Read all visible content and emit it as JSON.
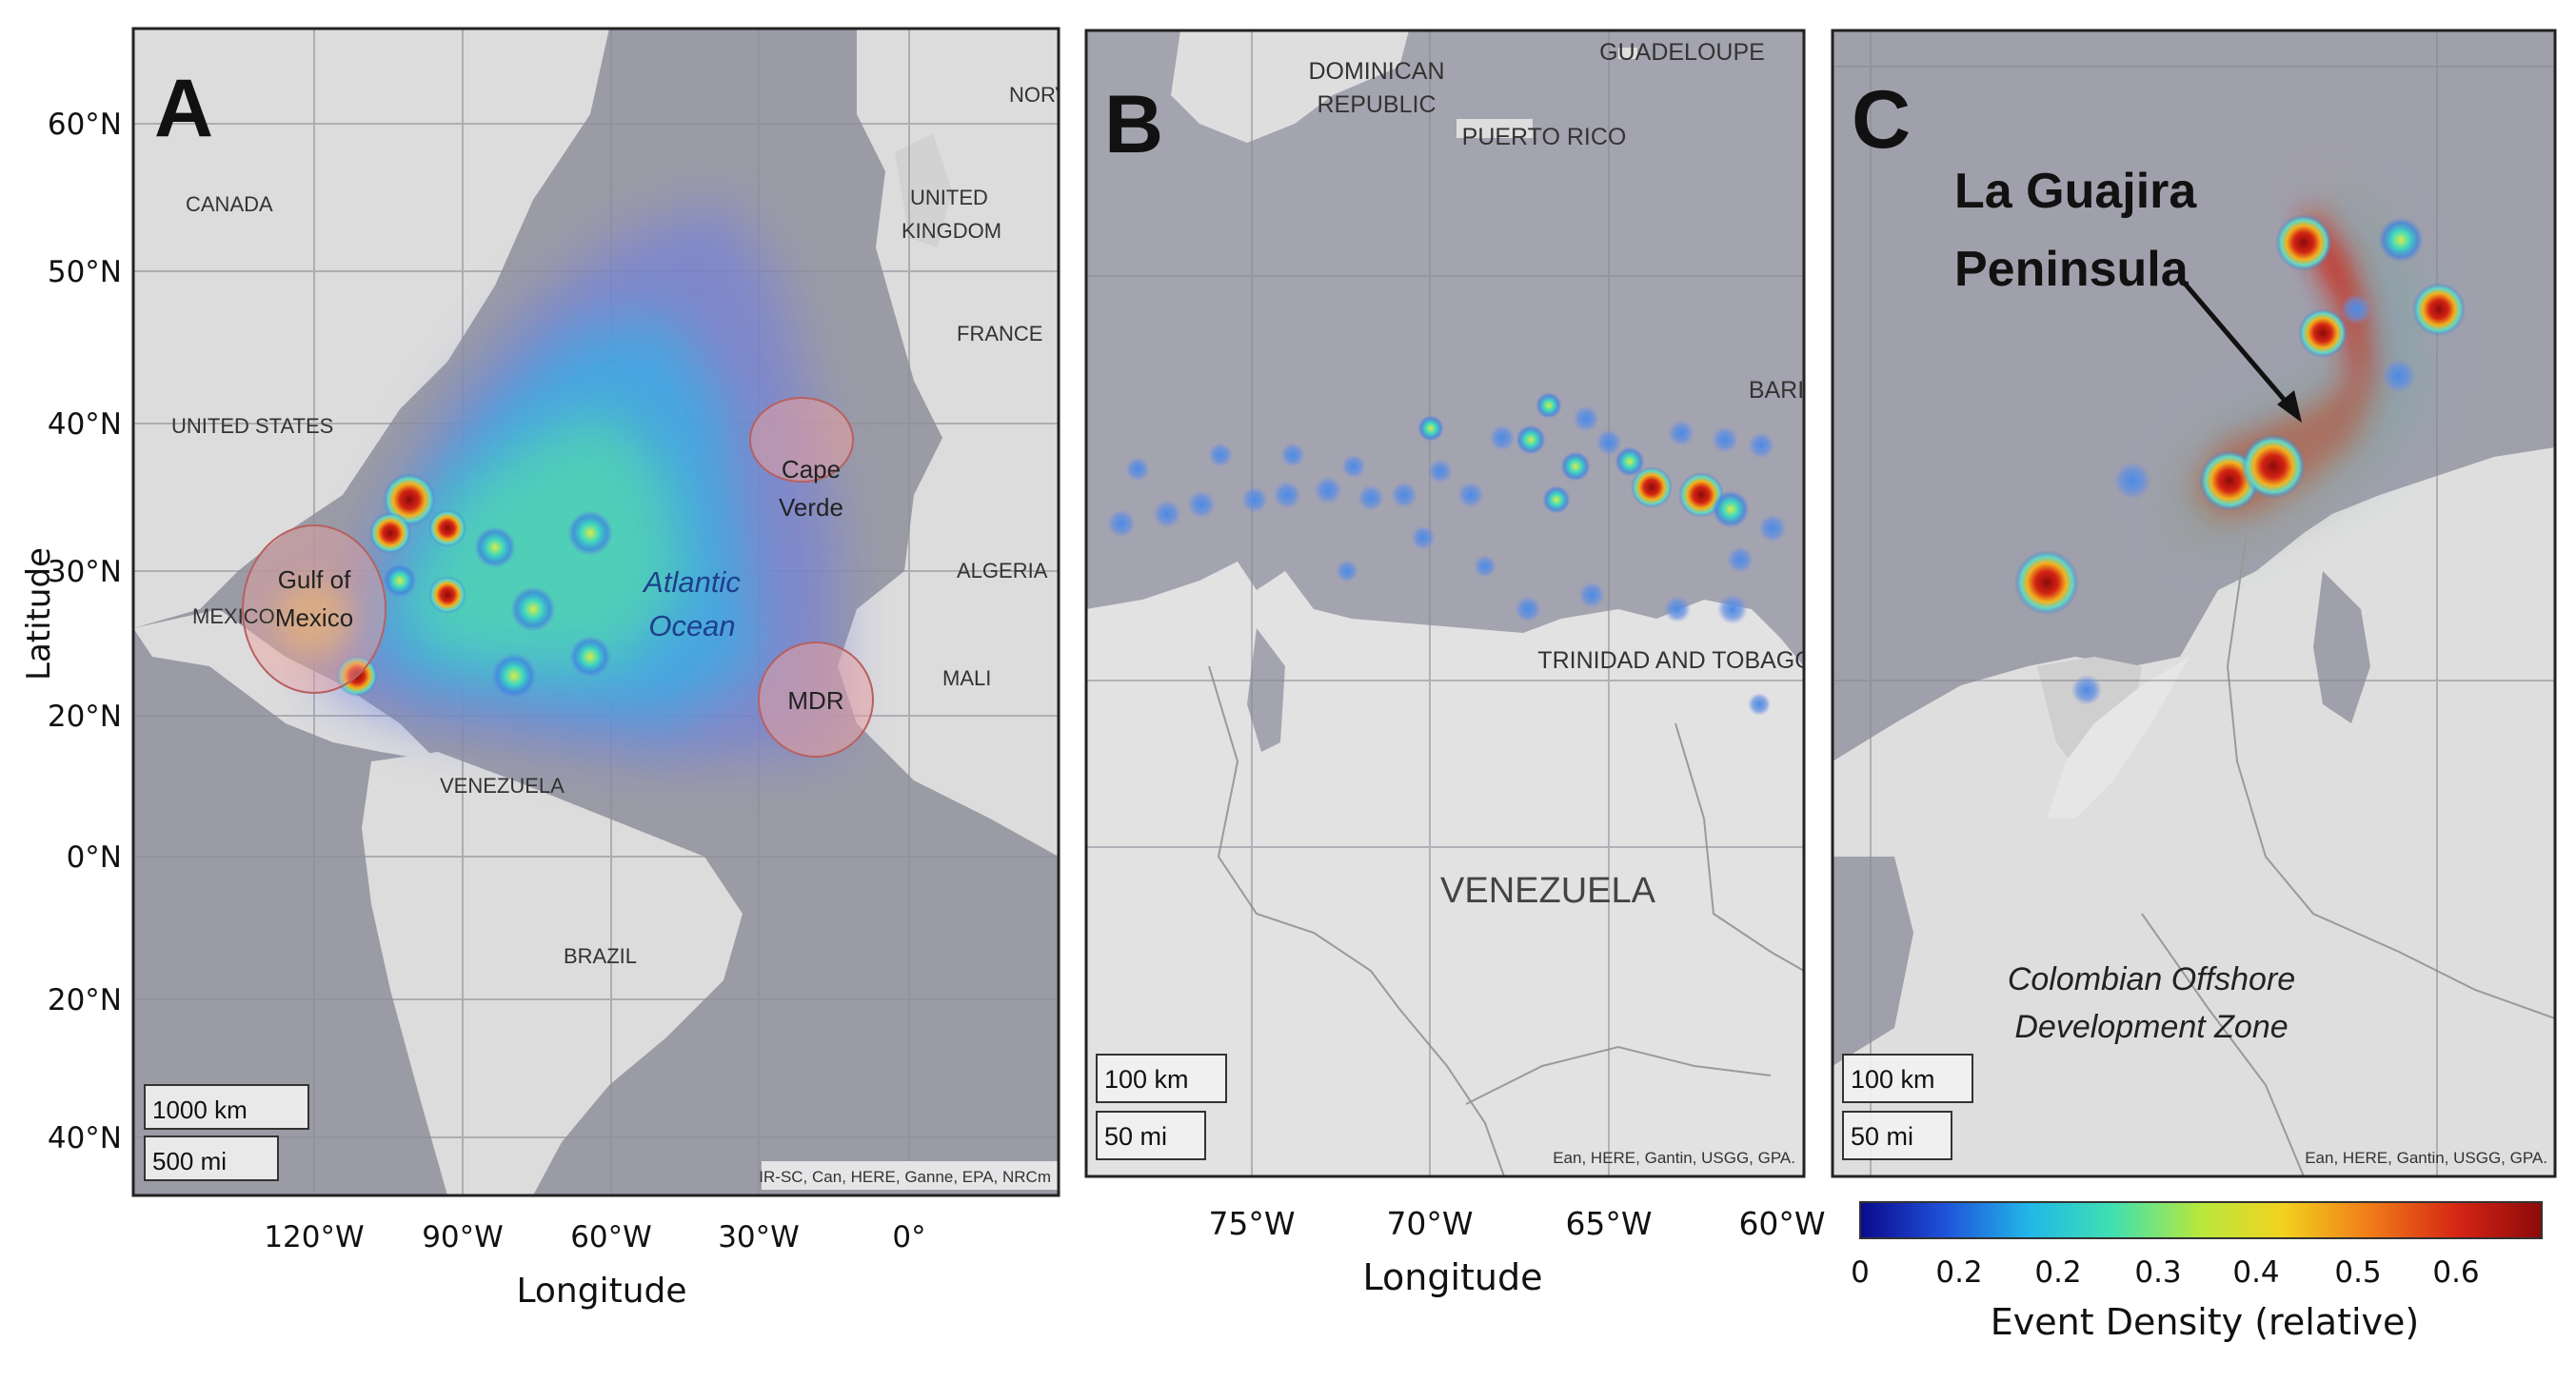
{
  "panels": {
    "a": {
      "letter": "A",
      "place_labels": [
        "NORV",
        "CANADA",
        "UNITED",
        "KINGDOM",
        "FRANCE",
        "UNITED STATES",
        "MEXICO",
        "ALGERIA",
        "MALI",
        "VENEZUELA",
        "BRAZIL"
      ],
      "ocean_label": [
        "Atlantic",
        "Ocean"
      ],
      "regions": [
        {
          "label": [
            "Gulf of",
            "Mexico"
          ]
        },
        {
          "label": [
            "Cape",
            "Verde"
          ]
        },
        {
          "label": [
            "MDR"
          ]
        }
      ],
      "lat_ticks": [
        "60°N",
        "50°N",
        "40°N",
        "30°N",
        "20°N",
        "0°N",
        "20°N",
        "40°N"
      ],
      "lon_ticks": [
        "120°W",
        "90°W",
        "60°W",
        "30°W",
        "0°"
      ],
      "ylabel": "Latitude",
      "xlabel": "Longitude",
      "scale_km": "1000 km",
      "scale_mi": "500 mi",
      "attribution": "IR-SC, Can, HERE, Ganne, EPA, NRCm"
    },
    "b": {
      "letter": "B",
      "place_labels": [
        "DOMINICAN",
        "REPUBLIC",
        "GUADELOUPE",
        "PUERTO RICO",
        "BARI",
        "TRINIDAD AND TOBAGO",
        "VENEZUELA"
      ],
      "lon_ticks": [
        "75°W",
        "70°W",
        "65°W",
        "60°W"
      ],
      "xlabel": "Longitude",
      "scale_km": "100 km",
      "scale_mi": "50 mi",
      "attribution": "Ean, HERE, Gantin, USGG, GPA."
    },
    "c": {
      "letter": "C",
      "callout": [
        "La Guajira",
        "Peninsula"
      ],
      "zone_label": [
        "Colombian Offshore",
        "Development Zone"
      ],
      "scale_km": "100 km",
      "scale_mi": "50 mi",
      "attribution": "Ean, HERE, Gantin, USGG, GPA."
    }
  },
  "colorbar": {
    "title": "Event Density (relative)",
    "ticks": [
      "0",
      "0.2",
      "0.2",
      "0.3",
      "0.4",
      "0.5",
      "0.6"
    ],
    "colors": [
      "#0a0a8c",
      "#1f4fd8",
      "#22b8e8",
      "#3fe0b0",
      "#b8e83c",
      "#f2d21e",
      "#f07a18",
      "#d42414",
      "#8c0a0a"
    ]
  }
}
